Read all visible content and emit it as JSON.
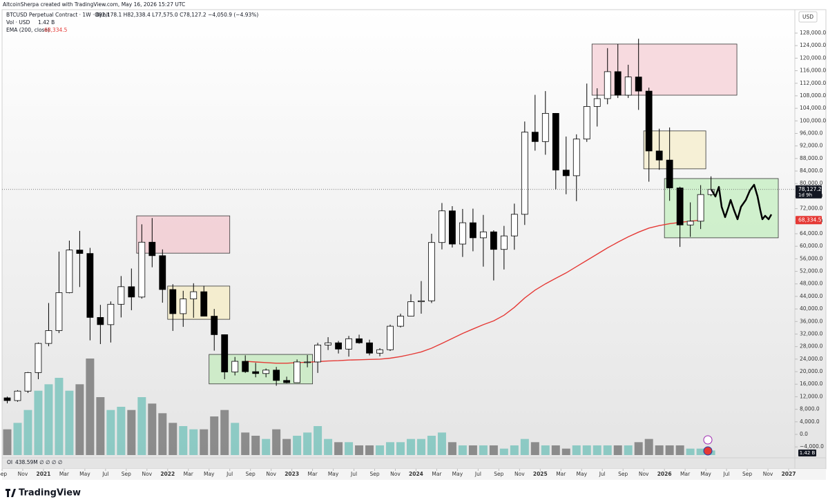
{
  "header": {
    "credit": "AltcoinSherpa created with TradingView.com, May 16, 2026 15:27 UTC",
    "symbol": "BTCUSD Perpetual Contract · 1W · Bybit",
    "ohlc": "O82,178.1 H82,338.4 L77,575.0 C78,127.2 −4,050.9 (−4.93%)",
    "volume_legend": "Vol · USD",
    "volume_value": "1.42 B",
    "ema_legend": "EMA (200, close)",
    "ema_value": "68,334.5",
    "currency": "USD",
    "last_price": "78,127.2",
    "countdown": "1d 9h",
    "oi_legend": "OI",
    "oi_value": "438.59M ∅ ∅ ∅ ∅",
    "logo": "TradingView"
  },
  "chart_data": {
    "type": "candlestick",
    "x": [
      "2020-09",
      "2020-10",
      "2020-11",
      "2020-12",
      "2021-01",
      "2021-02",
      "2021-03",
      "2021-04",
      "2021-05",
      "2021-06",
      "2021-07",
      "2021-08",
      "2021-09",
      "2021-10",
      "2021-11",
      "2021-12",
      "2022-01",
      "2022-02",
      "2022-03",
      "2022-04",
      "2022-05",
      "2022-06",
      "2022-07",
      "2022-08",
      "2022-09",
      "2022-10",
      "2022-11",
      "2022-12",
      "2023-01",
      "2023-02",
      "2023-03",
      "2023-04",
      "2023-05",
      "2023-06",
      "2023-07",
      "2023-08",
      "2023-09",
      "2023-10",
      "2023-11",
      "2023-12",
      "2024-01",
      "2024-02",
      "2024-03",
      "2024-04",
      "2024-05",
      "2024-06",
      "2024-07",
      "2024-08",
      "2024-09",
      "2024-10",
      "2024-11",
      "2024-12",
      "2025-01",
      "2025-02",
      "2025-03",
      "2025-04",
      "2025-05",
      "2025-06",
      "2025-07",
      "2025-08",
      "2025-09",
      "2025-10",
      "2025-11",
      "2025-12",
      "2026-01",
      "2026-02",
      "2026-03",
      "2026-04",
      "2026-05"
    ],
    "open": [
      11650,
      10780,
      13800,
      19700,
      29000,
      33100,
      45200,
      58800,
      57700,
      37300,
      35000,
      41500,
      47100,
      43800,
      61300,
      57000,
      46200,
      38500,
      43200,
      45500,
      37700,
      31800,
      19900,
      23300,
      20000,
      19400,
      20500,
      17200,
      16500,
      23100,
      23100,
      28500,
      29200,
      27200,
      30500,
      29200,
      25900,
      27000,
      34500,
      37700,
      42300,
      42600,
      61200,
      71300,
      60700,
      67500,
      62700,
      64600,
      59000,
      63300,
      70200,
      96400,
      93400,
      102400,
      84300,
      82500,
      94200,
      104600,
      107100,
      115700,
      108200,
      114000,
      109500,
      90400,
      87500,
      78600,
      66800,
      68000,
      76500
    ],
    "high": [
      12050,
      14100,
      19900,
      29300,
      41900,
      58300,
      61800,
      64900,
      59500,
      41300,
      42400,
      50500,
      52900,
      67000,
      69000,
      59000,
      47900,
      45800,
      48200,
      47400,
      40000,
      31900,
      24700,
      25200,
      22800,
      21000,
      21500,
      18400,
      23900,
      25300,
      29200,
      31000,
      29800,
      31400,
      31800,
      30200,
      27500,
      35000,
      38500,
      44700,
      48900,
      64000,
      73800,
      72800,
      71900,
      72000,
      70000,
      65100,
      66500,
      73600,
      99800,
      108300,
      109500,
      102500,
      95000,
      95700,
      111900,
      110400,
      123200,
      124500,
      117900,
      126200,
      110600,
      97500,
      97900,
      79000,
      74000,
      79500,
      82300
    ],
    "low": [
      9900,
      10400,
      13200,
      17600,
      28100,
      32300,
      45000,
      47000,
      30000,
      28800,
      29300,
      37300,
      39600,
      43300,
      53300,
      42000,
      33000,
      34300,
      37200,
      37700,
      26700,
      17600,
      18800,
      19600,
      18200,
      18200,
      15500,
      16300,
      16500,
      21400,
      19600,
      26900,
      25800,
      24800,
      28900,
      25200,
      24900,
      26600,
      34100,
      37600,
      38500,
      41900,
      59000,
      59600,
      56600,
      58400,
      53500,
      49100,
      52600,
      58900,
      66800,
      90500,
      89200,
      78200,
      76600,
      74400,
      93300,
      98200,
      105300,
      107300,
      107300,
      103500,
      80600,
      84400,
      74500,
      59800,
      63000,
      65500,
      76000
    ],
    "close": [
      10780,
      13800,
      19700,
      29000,
      33100,
      45200,
      58800,
      57700,
      37300,
      35000,
      41500,
      47100,
      43800,
      61300,
      57000,
      46200,
      38500,
      43200,
      45500,
      37700,
      31800,
      19900,
      23300,
      20000,
      19400,
      20500,
      17200,
      16500,
      23100,
      23100,
      28500,
      29200,
      27200,
      30500,
      29200,
      25900,
      27000,
      34500,
      37700,
      42300,
      42600,
      61200,
      71300,
      60700,
      67500,
      62700,
      64600,
      59000,
      63300,
      70200,
      96400,
      93400,
      102400,
      84300,
      82500,
      94200,
      104600,
      107100,
      115700,
      108200,
      114000,
      109500,
      90400,
      87500,
      78600,
      66800,
      68000,
      76500,
      78127.2
    ],
    "volume": [
      8,
      10,
      14,
      20,
      22,
      24,
      20,
      22,
      30,
      18,
      14,
      15,
      14,
      18,
      16,
      13,
      10,
      9,
      8,
      8,
      12,
      14,
      10,
      7,
      6,
      5,
      8,
      5,
      6,
      7,
      9,
      5,
      4,
      4,
      3,
      3,
      3,
      4,
      4,
      5,
      5,
      6,
      7,
      4,
      3,
      3,
      3,
      3,
      2,
      3,
      5,
      4,
      3,
      3,
      2,
      3,
      3,
      3,
      3,
      3,
      3,
      4,
      5,
      3,
      3,
      3,
      2,
      2,
      1.42
    ],
    "ema": [
      null,
      null,
      null,
      null,
      null,
      null,
      null,
      null,
      null,
      null,
      null,
      null,
      null,
      null,
      null,
      null,
      null,
      null,
      null,
      null,
      null,
      null,
      null,
      23300,
      23100,
      22900,
      22700,
      22700,
      22900,
      23000,
      23200,
      23400,
      23500,
      23700,
      23800,
      23900,
      24000,
      24300,
      24800,
      25500,
      26300,
      27500,
      29000,
      30600,
      32200,
      33600,
      35000,
      36200,
      38000,
      40500,
      43500,
      46000,
      48000,
      49800,
      51500,
      53500,
      55500,
      57500,
      59500,
      61300,
      63000,
      64500,
      65800,
      66600,
      67200,
      67600,
      68000,
      68334.5
    ],
    "up_color": "#ffffff",
    "down_color": "#000000",
    "volume_up_color": "#7cc4bd",
    "volume_down_color": "#7b7b7b",
    "ema_color": "#e53935",
    "zones": [
      {
        "start": "2021-10",
        "end": "2022-07",
        "top": 69700,
        "bottom": 57800,
        "color": "#f2cdd2"
      },
      {
        "start": "2022-01",
        "end": "2022-07",
        "top": 47300,
        "bottom": 36700,
        "color": "#f4ecc9"
      },
      {
        "start": "2022-05",
        "end": "2023-03",
        "top": 25500,
        "bottom": 16100,
        "color": "#c9ebc3"
      },
      {
        "start": "2025-06",
        "end": "2026-08",
        "top": 124500,
        "bottom": 108200,
        "color": "#f6d4d9"
      },
      {
        "start": "2025-11",
        "end": "2026-05",
        "top": 96800,
        "bottom": 84700,
        "color": "#f6eed0"
      },
      {
        "start": "2026-01",
        "end": "2026-12",
        "top": 81600,
        "bottom": 62700,
        "color": "#c9efc5"
      }
    ],
    "ylim": [
      -6600,
      129760
    ],
    "xlim": [
      "2020-09",
      "2027-01"
    ],
    "grid": false,
    "yticks": [
      {
        "value": -4000,
        "label": "−4,000.0"
      },
      {
        "value": 0,
        "label": "0.0"
      },
      {
        "value": 4000,
        "label": "4,000.0"
      },
      {
        "value": 8000,
        "label": "8,000.0"
      },
      {
        "value": 12000,
        "label": "12,000.0"
      },
      {
        "value": 16000,
        "label": "16,000.0"
      },
      {
        "value": 20000,
        "label": "20,000.0"
      },
      {
        "value": 24000,
        "label": "24,000.0"
      },
      {
        "value": 28000,
        "label": "28,000.0"
      },
      {
        "value": 32000,
        "label": "32,000.0"
      },
      {
        "value": 36000,
        "label": "36,000.0"
      },
      {
        "value": 40000,
        "label": "40,000.0"
      },
      {
        "value": 44000,
        "label": "44,000.0"
      },
      {
        "value": 48000,
        "label": "48,000.0"
      },
      {
        "value": 52000,
        "label": "52,000.0"
      },
      {
        "value": 56000,
        "label": "56,000.0"
      },
      {
        "value": 60000,
        "label": "60,000.0"
      },
      {
        "value": 64000,
        "label": "64,000.0"
      },
      {
        "value": 68000,
        "label": "68,000.0"
      },
      {
        "value": 72000,
        "label": "72,000.0"
      },
      {
        "value": 76000,
        "label": "76,000.0"
      },
      {
        "value": 80000,
        "label": "80,000.0"
      },
      {
        "value": 84000,
        "label": "84,000.0"
      },
      {
        "value": 88000,
        "label": "88,000.0"
      },
      {
        "value": 92000,
        "label": "92,000.0"
      },
      {
        "value": 96000,
        "label": "96,000.0"
      },
      {
        "value": 100000,
        "label": "100,000.0"
      },
      {
        "value": 104000,
        "label": "104,000.0"
      },
      {
        "value": 108000,
        "label": "108,000.0"
      },
      {
        "value": 112000,
        "label": "112,000.0"
      },
      {
        "value": 116000,
        "label": "116,000.0"
      },
      {
        "value": 120000,
        "label": "120,000.0"
      },
      {
        "value": 124000,
        "label": "124,000.0"
      },
      {
        "value": 128000,
        "label": "128,000.0"
      }
    ],
    "xticks": [
      {
        "value": "2020-09",
        "label": "Sep"
      },
      {
        "value": "2020-11",
        "label": "Nov"
      },
      {
        "value": "2021-01",
        "label": "2021"
      },
      {
        "value": "2021-03",
        "label": "Mar"
      },
      {
        "value": "2021-05",
        "label": "May"
      },
      {
        "value": "2021-07",
        "label": "Jul"
      },
      {
        "value": "2021-09",
        "label": "Sep"
      },
      {
        "value": "2021-11",
        "label": "Nov"
      },
      {
        "value": "2022-01",
        "label": "2022"
      },
      {
        "value": "2022-03",
        "label": "Mar"
      },
      {
        "value": "2022-05",
        "label": "May"
      },
      {
        "value": "2022-07",
        "label": "Jul"
      },
      {
        "value": "2022-09",
        "label": "Sep"
      },
      {
        "value": "2022-11",
        "label": "Nov"
      },
      {
        "value": "2023-01",
        "label": "2023"
      },
      {
        "value": "2023-03",
        "label": "Mar"
      },
      {
        "value": "2023-05",
        "label": "May"
      },
      {
        "value": "2023-07",
        "label": "Jul"
      },
      {
        "value": "2023-09",
        "label": "Sep"
      },
      {
        "value": "2023-11",
        "label": "Nov"
      },
      {
        "value": "2024-01",
        "label": "2024"
      },
      {
        "value": "2024-03",
        "label": "Mar"
      },
      {
        "value": "2024-05",
        "label": "May"
      },
      {
        "value": "2024-07",
        "label": "Jul"
      },
      {
        "value": "2024-09",
        "label": "Sep"
      },
      {
        "value": "2024-11",
        "label": "Nov"
      },
      {
        "value": "2025-01",
        "label": "2025"
      },
      {
        "value": "2025-03",
        "label": "Mar"
      },
      {
        "value": "2025-05",
        "label": "May"
      },
      {
        "value": "2025-07",
        "label": "Jul"
      },
      {
        "value": "2025-09",
        "label": "Sep"
      },
      {
        "value": "2025-11",
        "label": "Nov"
      },
      {
        "value": "2026-01",
        "label": "2026"
      },
      {
        "value": "2026-03",
        "label": "Mar"
      },
      {
        "value": "2026-05",
        "label": "May"
      },
      {
        "value": "2026-07",
        "label": "Jul"
      },
      {
        "value": "2026-09",
        "label": "Sep"
      },
      {
        "value": "2026-11",
        "label": "Nov"
      },
      {
        "value": "2027-01",
        "label": "2027"
      }
    ]
  }
}
